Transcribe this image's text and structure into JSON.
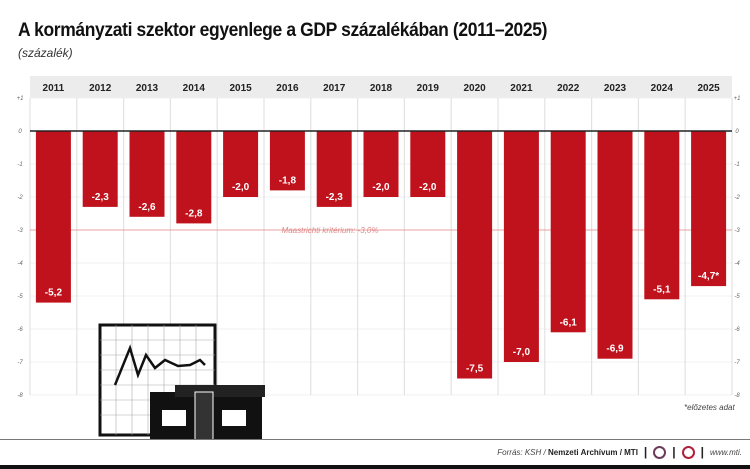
{
  "title": "A kormányzati szektor egyenlege a GDP százalékában (2011–2025)",
  "subtitle": "(százalék)",
  "note": "*előzetes adat",
  "footer": {
    "source_prefix": "Forrás: KSH / ",
    "source_bold": "Nemzeti Archívum / MTI",
    "website": "www.mti."
  },
  "colors": {
    "bar": "#c0121c",
    "reference_line": "#e8a0a0",
    "header_bg": "#ececec"
  },
  "chart_data": {
    "type": "bar",
    "categories": [
      "2011",
      "2012",
      "2013",
      "2014",
      "2015",
      "2016",
      "2017",
      "2018",
      "2019",
      "2020",
      "2021",
      "2022",
      "2023",
      "2024",
      "2025"
    ],
    "values": [
      -5.2,
      -2.3,
      -2.6,
      -2.8,
      -2.0,
      -1.8,
      -2.3,
      -2.0,
      -2.0,
      -7.5,
      -7.0,
      -6.1,
      -6.9,
      -5.1,
      -4.7
    ],
    "data_labels": [
      "-5,2",
      "-2,3",
      "-2,6",
      "-2,8",
      "-2,0",
      "-1,8",
      "-2,3",
      "-2,0",
      "-2,0",
      "-7,5",
      "-7,0",
      "-6,1",
      "-6,9",
      "-5,1",
      "-4,7*"
    ],
    "ylim": [
      -8,
      1
    ],
    "y_ticks": [
      "+1",
      "0",
      "-1",
      "-2",
      "-3",
      "-4",
      "-5",
      "-6",
      "-7",
      "-8"
    ],
    "reference_line": {
      "value": -3.0,
      "label": "Maastrichti kritérium: -3,0%"
    },
    "grid": true
  }
}
